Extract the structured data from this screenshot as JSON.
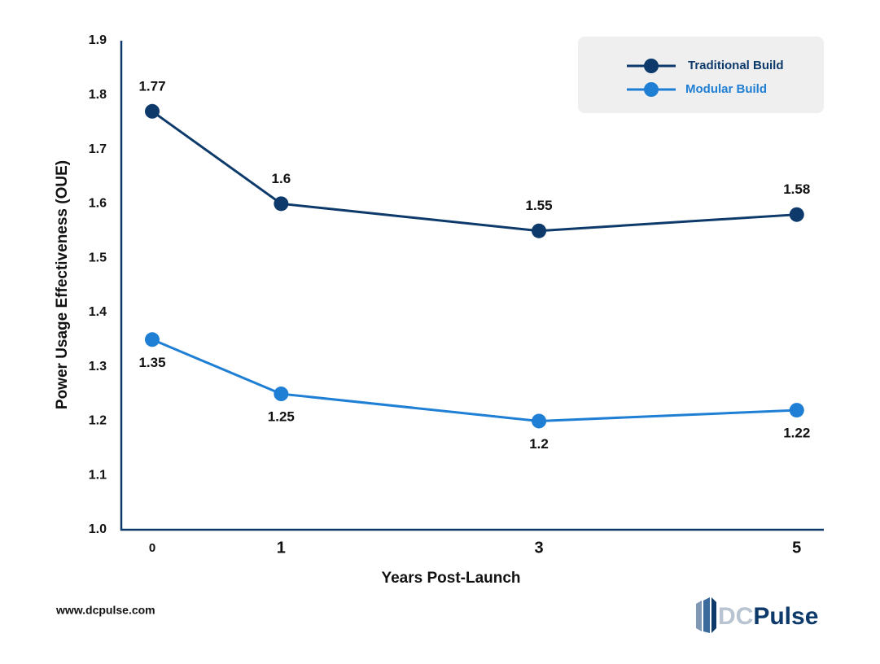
{
  "chart_data": {
    "type": "line",
    "x": [
      0,
      1,
      3,
      5
    ],
    "xlim": [
      -0.24,
      5.21
    ],
    "xticks": [
      0,
      1,
      3,
      5
    ],
    "ylim": [
      1.0,
      1.9
    ],
    "yticks": [
      {
        "value": 1.0,
        "label": "1.0"
      },
      1.1,
      1.2,
      1.3,
      1.4,
      1.5,
      1.6,
      1.7,
      1.8,
      1.9
    ],
    "xlabel": "Years Post-Launch",
    "ylabel": "Power Usage Effectiveness (OUE)",
    "grid": false,
    "legend": "upper right",
    "series": [
      {
        "name": "Traditional Build",
        "color": "#0d3a6b",
        "values": [
          1.77,
          1.6,
          1.55,
          1.58
        ],
        "labels": "above"
      },
      {
        "name": "Modular Build",
        "color": "#1f7fd4",
        "values": [
          1.35,
          1.25,
          1.2,
          1.22
        ],
        "labels": "below"
      }
    ],
    "source": "www.dcpulse.com",
    "logo": [
      "DC",
      "Pulse"
    ]
  }
}
